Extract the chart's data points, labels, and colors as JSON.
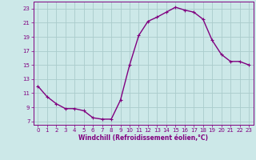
{
  "x": [
    0,
    1,
    2,
    3,
    4,
    5,
    6,
    7,
    8,
    9,
    10,
    11,
    12,
    13,
    14,
    15,
    16,
    17,
    18,
    19,
    20,
    21,
    22,
    23
  ],
  "y": [
    12,
    10.5,
    9.5,
    8.8,
    8.8,
    8.5,
    7.5,
    7.3,
    7.3,
    10,
    15,
    19.2,
    21.2,
    21.8,
    22.5,
    23.2,
    22.8,
    22.5,
    21.5,
    18.5,
    16.5,
    15.5,
    15.5,
    15
  ],
  "line_color": "#800080",
  "marker": "+",
  "marker_size": 3,
  "bg_color": "#cce8e8",
  "grid_color": "#aacccc",
  "xlabel": "Windchill (Refroidissement éolien,°C)",
  "ylabel": "",
  "xlim": [
    -0.5,
    23.5
  ],
  "ylim": [
    6.5,
    24.0
  ],
  "yticks": [
    7,
    9,
    11,
    13,
    15,
    17,
    19,
    21,
    23
  ],
  "xticks": [
    0,
    1,
    2,
    3,
    4,
    5,
    6,
    7,
    8,
    9,
    10,
    11,
    12,
    13,
    14,
    15,
    16,
    17,
    18,
    19,
    20,
    21,
    22,
    23
  ],
  "spine_color": "#800080",
  "tick_color": "#800080",
  "label_color": "#800080",
  "tick_fontsize": 5.0,
  "xlabel_fontsize": 5.5,
  "linewidth": 1.0,
  "marker_edge_width": 0.8
}
